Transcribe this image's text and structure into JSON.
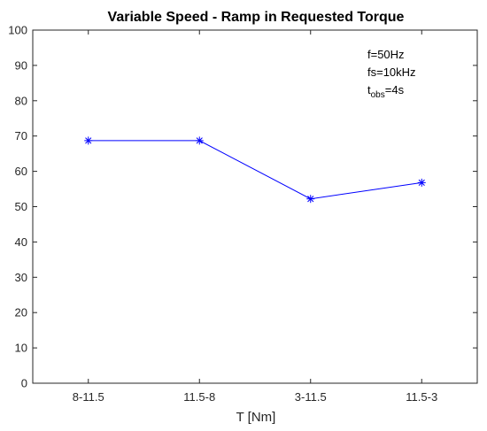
{
  "chart_data": {
    "type": "line",
    "title": "Variable Speed - Ramp in Requested Torque",
    "xlabel": "T [Nm]",
    "ylabel": "",
    "categories": [
      "8-11.5",
      "11.5-8",
      "3-11.5",
      "11.5-3"
    ],
    "values": [
      68.7,
      68.7,
      52.2,
      56.8
    ],
    "ylim": [
      0,
      100
    ],
    "yticks": [
      0,
      10,
      20,
      30,
      40,
      50,
      60,
      70,
      80,
      90,
      100
    ],
    "grid": false,
    "line_color": "#0000ff",
    "marker": "asterisk",
    "annotations": {
      "f": "f=50Hz",
      "fs": "fs=10kHz",
      "tobs_prefix": "t",
      "tobs_sub": "obs",
      "tobs_value": "=4s"
    }
  }
}
